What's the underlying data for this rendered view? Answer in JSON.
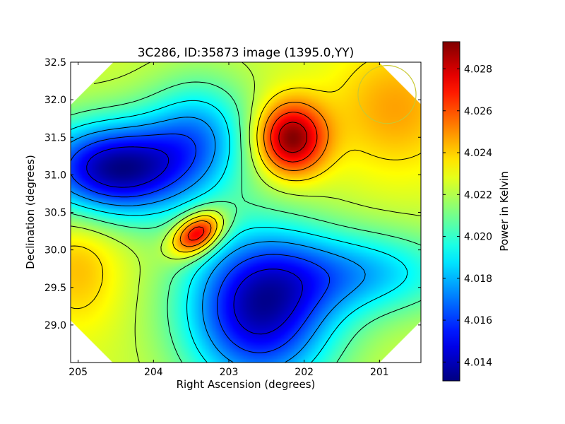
{
  "chart_data": {
    "type": "heatmap",
    "title": "3C286, ID:35873 image (1395.0,YY)",
    "xlabel": "Right Ascension (degrees)",
    "ylabel": "Declination (degrees)",
    "xlim": [
      205.1,
      200.45
    ],
    "ylim": [
      28.5,
      32.5
    ],
    "x_ticks": [
      "205",
      "204",
      "203",
      "202",
      "201"
    ],
    "x_tick_values": [
      205,
      204,
      203,
      202,
      201
    ],
    "y_ticks": [
      "29.0",
      "29.5",
      "30.0",
      "30.5",
      "31.0",
      "31.5",
      "32.0",
      "32.5"
    ],
    "y_tick_values": [
      29.0,
      29.5,
      30.0,
      30.5,
      31.0,
      31.5,
      32.0,
      32.5
    ],
    "colorbar": {
      "label": "Power in Kelvin",
      "range": [
        4.0131,
        4.0293
      ],
      "ticks": [
        "4.014",
        "4.016",
        "4.018",
        "4.020",
        "4.022",
        "4.024",
        "4.026",
        "4.028"
      ],
      "tick_values": [
        4.014,
        4.016,
        4.018,
        4.02,
        4.022,
        4.024,
        4.026,
        4.028
      ],
      "colormap": "jet"
    },
    "base_level": 4.0225,
    "features": [
      {
        "kind": "peak",
        "ra": 202.18,
        "dec": 31.49,
        "amp": 0.0069,
        "sx": 0.32,
        "sy": 0.34
      },
      {
        "kind": "peak",
        "ra": 203.42,
        "dec": 30.22,
        "amp": 0.0072,
        "sx": 0.26,
        "sy": 0.17,
        "rot": 35
      },
      {
        "kind": "trough",
        "ra": 204.5,
        "dec": 31.08,
        "amp": -0.0092,
        "sx": 0.75,
        "sy": 0.45
      },
      {
        "kind": "trough",
        "ra": 202.6,
        "dec": 29.2,
        "amp": -0.0085,
        "sx": 0.7,
        "sy": 0.75
      },
      {
        "kind": "trough",
        "ra": 203.4,
        "dec": 31.6,
        "amp": -0.004,
        "sx": 0.5,
        "sy": 0.5
      },
      {
        "kind": "trough",
        "ra": 201.2,
        "dec": 29.7,
        "amp": -0.004,
        "sx": 0.9,
        "sy": 0.4
      },
      {
        "kind": "peak",
        "ra": 200.8,
        "dec": 31.9,
        "amp": 0.0022,
        "sx": 0.6,
        "sy": 0.6
      },
      {
        "kind": "peak",
        "ra": 205.0,
        "dec": 29.8,
        "amp": 0.0018,
        "sx": 0.4,
        "sy": 0.6
      }
    ],
    "contour_step": 0.0015,
    "circle_marker": {
      "ra": 200.9,
      "dec": 32.07,
      "radius_deg": 0.35,
      "color": "#c8c832"
    },
    "grid": false
  }
}
